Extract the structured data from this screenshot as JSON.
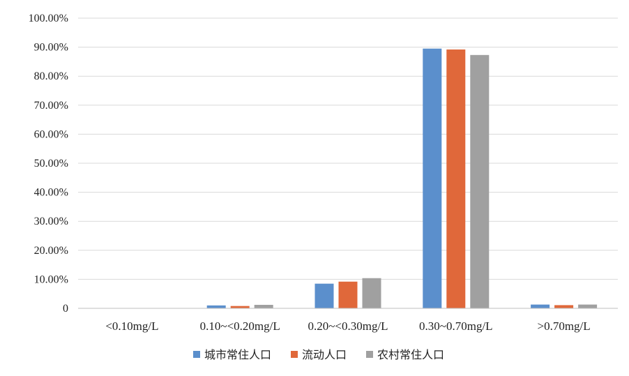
{
  "chart_data": {
    "type": "bar",
    "title": "",
    "xlabel": "",
    "ylabel": "",
    "categories": [
      "<0.10mg/L",
      "0.10~<0.20mg/L",
      "0.20~<0.30mg/L",
      "0.30~0.70mg/L",
      ">0.70mg/L"
    ],
    "series": [
      {
        "name": "城市常住人口",
        "color": "#5b8fcc",
        "values": [
          0.1,
          1.0,
          8.5,
          89.5,
          1.3
        ]
      },
      {
        "name": "流动人口",
        "color": "#e0683a",
        "values": [
          0.1,
          0.8,
          9.2,
          89.2,
          1.1
        ]
      },
      {
        "name": "农村常住人口",
        "color": "#a0a0a0",
        "values": [
          0.1,
          1.2,
          10.4,
          87.3,
          1.3
        ]
      }
    ],
    "ylim": [
      0,
      100
    ],
    "yticks": [
      0,
      10,
      20,
      30,
      40,
      50,
      60,
      70,
      80,
      90,
      100
    ],
    "ytick_labels": [
      "0",
      "10.00%",
      "20.00%",
      "30.00%",
      "40.00%",
      "50.00%",
      "60.00%",
      "70.00%",
      "80.00%",
      "90.00%",
      "100.00%"
    ],
    "grid": true,
    "legend_position": "bottom"
  }
}
